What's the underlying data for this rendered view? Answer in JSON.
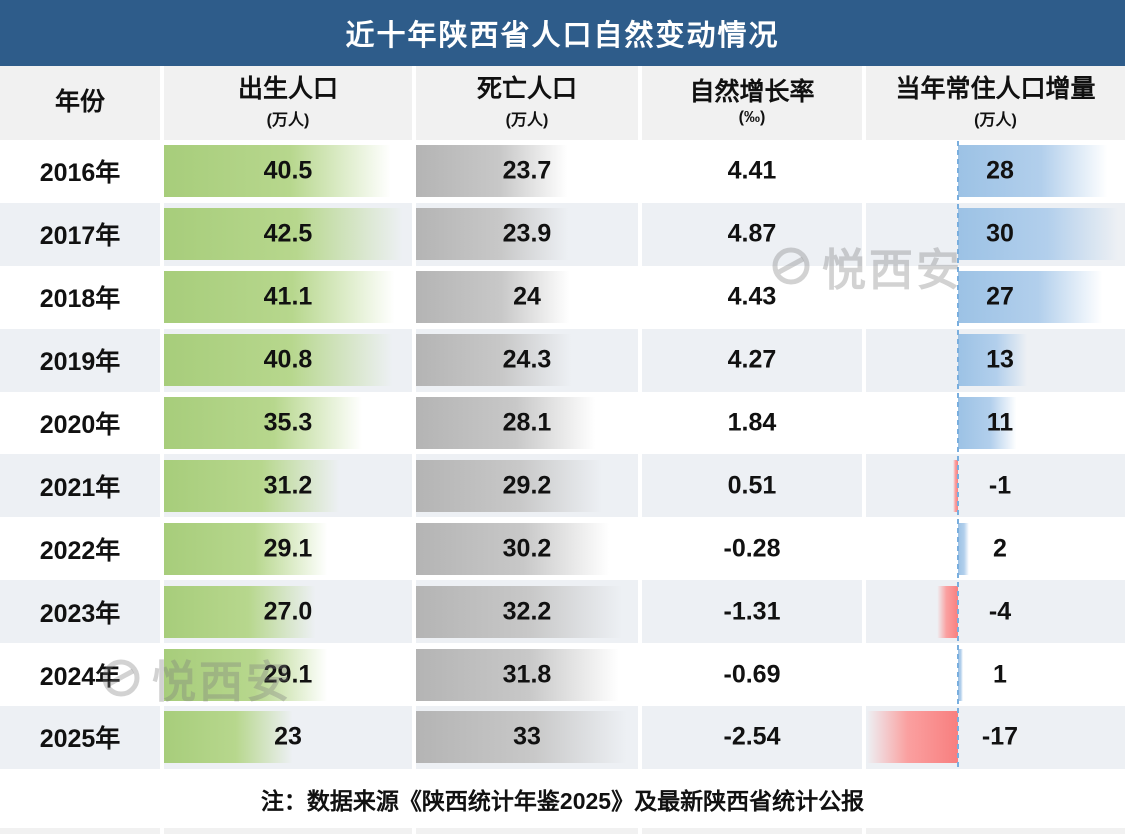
{
  "title": "近十年陕西省人口自然变动情况",
  "watermark": "悦西安",
  "note": "注：数据来源《陕西统计年鉴2025》及最新陕西省统计公报",
  "columns": [
    {
      "label": "年份",
      "unit": ""
    },
    {
      "label": "出生人口",
      "unit": "(万人)"
    },
    {
      "label": "死亡人口",
      "unit": "(万人)"
    },
    {
      "label": "自然增长率",
      "unit": "(‰)"
    },
    {
      "label": "当年常住人口增量",
      "unit": "(万人)"
    }
  ],
  "rows": [
    {
      "year": "2016年",
      "births": "40.5",
      "deaths": "23.7",
      "rate": "4.41",
      "increase": "28"
    },
    {
      "year": "2017年",
      "births": "42.5",
      "deaths": "23.9",
      "rate": "4.87",
      "increase": "30"
    },
    {
      "year": "2018年",
      "births": "41.1",
      "deaths": "24",
      "rate": "4.43",
      "increase": "27"
    },
    {
      "year": "2019年",
      "births": "40.8",
      "deaths": "24.3",
      "rate": "4.27",
      "increase": "13"
    },
    {
      "year": "2020年",
      "births": "35.3",
      "deaths": "28.1",
      "rate": "1.84",
      "increase": "11"
    },
    {
      "year": "2021年",
      "births": "31.2",
      "deaths": "29.2",
      "rate": "0.51",
      "increase": "-1"
    },
    {
      "year": "2022年",
      "births": "29.1",
      "deaths": "30.2",
      "rate": "-0.28",
      "increase": "2"
    },
    {
      "year": "2023年",
      "births": "27.0",
      "deaths": "32.2",
      "rate": "-1.31",
      "increase": "-4"
    },
    {
      "year": "2024年",
      "births": "29.1",
      "deaths": "31.8",
      "rate": "-0.69",
      "increase": "1"
    },
    {
      "year": "2025年",
      "births": "23",
      "deaths": "33",
      "rate": "-2.54",
      "increase": "-17"
    }
  ],
  "colors": {
    "title_bg": "#2E5C8A",
    "header_bg": "#F1F1F1",
    "row_alt_bg": "#EDF0F4",
    "births_bar": "#A7CD7B",
    "deaths_bar": "#B4B4B4",
    "increase_pos_bar": "#9CC2E5",
    "increase_neg_bar": "#F87F7F",
    "axis_line": "#79AEDE",
    "text": "#111111"
  },
  "chart_data": {
    "type": "table",
    "title": "近十年陕西省人口自然变动情况",
    "categories": [
      "2016",
      "2017",
      "2018",
      "2019",
      "2020",
      "2021",
      "2022",
      "2023",
      "2024",
      "2025"
    ],
    "series": [
      {
        "name": "出生人口(万人)",
        "values": [
          40.5,
          42.5,
          41.1,
          40.8,
          35.3,
          31.2,
          29.1,
          27.0,
          29.1,
          23
        ]
      },
      {
        "name": "死亡人口(万人)",
        "values": [
          23.7,
          23.9,
          24,
          24.3,
          28.1,
          29.2,
          30.2,
          32.2,
          31.8,
          33
        ]
      },
      {
        "name": "自然增长率(‰)",
        "values": [
          4.41,
          4.87,
          4.43,
          4.27,
          1.84,
          0.51,
          -0.28,
          -1.31,
          -0.69,
          -2.54
        ]
      },
      {
        "name": "当年常住人口增量(万人)",
        "values": [
          28,
          30,
          27,
          13,
          11,
          -1,
          2,
          -4,
          1,
          -17
        ]
      }
    ],
    "bar_scales": {
      "births_max": 42.5,
      "deaths_max": 33,
      "increase_max": 30
    },
    "layout": {
      "databars": true,
      "increase_axis": "dotted vertical zero line, positive bars blue to right, negative bars red to left",
      "legend": "none",
      "note": "注：数据来源《陕西统计年鉴2025》及最新陕西省统计公报"
    }
  }
}
